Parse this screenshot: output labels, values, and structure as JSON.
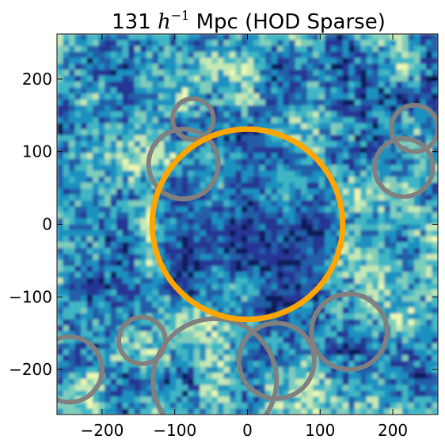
{
  "chart_data": {
    "type": "scatter",
    "title_prefix": "131 ",
    "title_math_base": "h",
    "title_math_sup": "−1",
    "title_suffix": " Mpc (HOD Sparse)",
    "xlim": [
      -262,
      262
    ],
    "ylim": [
      -262,
      262
    ],
    "x_ticks": [
      -200,
      -100,
      0,
      100,
      200
    ],
    "x_tick_labels": [
      "−200",
      "−100",
      "0",
      "100",
      "200"
    ],
    "y_ticks": [
      -200,
      -100,
      0,
      100,
      200
    ],
    "y_tick_labels": [
      "−200",
      "−100",
      "0",
      "100",
      "200"
    ],
    "grid": false,
    "background_field": {
      "description_colormap": "YlGnBu",
      "colors": [
        "#081d58",
        "#253494",
        "#225ea8",
        "#1d91c0",
        "#41b6c4",
        "#7fcdbb",
        "#c7e9b4",
        "#edf8b1"
      ]
    },
    "highlight_void": {
      "x": 0,
      "y": 0,
      "radius": 131,
      "color": "#ffa500"
    },
    "surrounding_voids": {
      "color": "#808080",
      "circles": [
        {
          "x": -75,
          "y": 145,
          "radius": 28
        },
        {
          "x": -88,
          "y": 83,
          "radius": 48
        },
        {
          "x": 230,
          "y": 132,
          "radius": 32
        },
        {
          "x": 215,
          "y": 78,
          "radius": 40
        },
        {
          "x": 140,
          "y": -148,
          "radius": 52
        },
        {
          "x": 40,
          "y": -188,
          "radius": 52
        },
        {
          "x": -145,
          "y": -160,
          "radius": 32
        },
        {
          "x": -245,
          "y": -200,
          "radius": 45
        },
        {
          "x": -45,
          "y": -215,
          "radius": 85
        }
      ]
    }
  }
}
